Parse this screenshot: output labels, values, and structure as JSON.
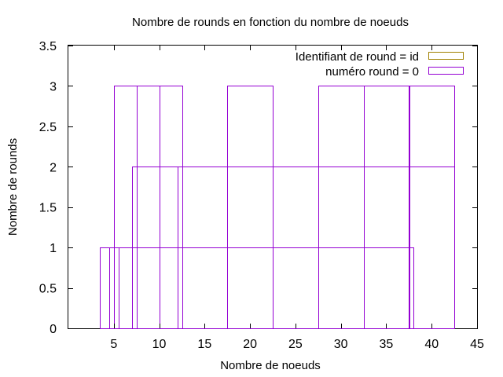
{
  "chart_data": {
    "type": "bar",
    "title": "Nombre de rounds en fonction du nombre de noeuds",
    "xlabel": "Nombre de noeuds",
    "ylabel": "Nombre de rounds",
    "xlim": [
      0,
      45
    ],
    "ylim": [
      0,
      3.5
    ],
    "xticks": [
      5,
      10,
      15,
      20,
      25,
      30,
      35,
      40,
      45
    ],
    "yticks": [
      0,
      0.5,
      1,
      1.5,
      2,
      2.5,
      3,
      3.5
    ],
    "xtick_labels": [
      "5",
      "10",
      "15",
      "20",
      "25",
      "30",
      "35",
      "40",
      "45"
    ],
    "ytick_labels": [
      "0",
      "0.5",
      "1",
      "1.5",
      "2",
      "2.5",
      "3",
      "3.5"
    ],
    "grid": false,
    "legend_position": "top-right",
    "colors": {
      "series1": "#a08000",
      "series2": "#9400d3"
    },
    "series": [
      {
        "name": "Identifiant de round = id",
        "bars": []
      },
      {
        "name": "numéro round = 0",
        "bars": [
          {
            "x": 4,
            "width": 1,
            "value": 1
          },
          {
            "x": 5,
            "width": 1,
            "value": 1
          },
          {
            "x": 7.5,
            "width": 5,
            "value": 3
          },
          {
            "x": 10,
            "width": 5,
            "value": 3
          },
          {
            "x": 9.5,
            "width": 5,
            "value": 2
          },
          {
            "x": 20,
            "width": 5,
            "value": 3
          },
          {
            "x": 30,
            "width": 5,
            "value": 3
          },
          {
            "x": 35,
            "width": 5,
            "value": 3
          },
          {
            "x": 40,
            "width": 5,
            "value": 3
          },
          {
            "x": 25,
            "width": 35,
            "value": 2
          },
          {
            "x": 21.5,
            "width": 33,
            "value": 1
          }
        ]
      }
    ]
  }
}
